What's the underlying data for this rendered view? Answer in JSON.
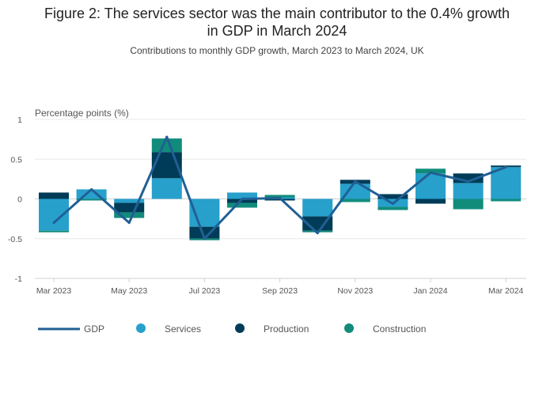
{
  "chart_data": {
    "type": "bar",
    "title": "Figure 2: The services sector was the main contributor to the 0.4% growth in GDP in March 2024",
    "title_lines": [
      "Figure 2: The services sector was the main contributor to the 0.4% growth",
      "in GDP in March 2024"
    ],
    "subtitle": "Contributions to monthly GDP growth, March 2023 to March 2024, UK",
    "ylabel": "Percentage points (%)",
    "ylim": [
      -1,
      1
    ],
    "yticks": [
      1,
      0.5,
      0,
      -0.5,
      -1
    ],
    "ytick_labels": [
      "1",
      "0.5",
      "0",
      "-0.5",
      "-1"
    ],
    "grid": true,
    "categories": [
      "Mar 2023",
      "Apr 2023",
      "May 2023",
      "Jun 2023",
      "Jul 2023",
      "Aug 2023",
      "Sep 2023",
      "Oct 2023",
      "Nov 2023",
      "Dec 2023",
      "Jan 2024",
      "Feb 2024",
      "Mar 2024"
    ],
    "xtick_labels": [
      "Mar 2023",
      "",
      "May 2023",
      "",
      "Jul 2023",
      "",
      "Sep 2023",
      "",
      "Nov 2023",
      "",
      "Jan 2024",
      "",
      "Mar 2024"
    ],
    "series": [
      {
        "name": "Services",
        "kind": "bar",
        "color": "#27a0cc",
        "values": [
          -0.4,
          0.12,
          -0.05,
          0.26,
          -0.35,
          0.08,
          0.02,
          -0.22,
          0.19,
          -0.1,
          0.32,
          0.2,
          0.4
        ]
      },
      {
        "name": "Production",
        "kind": "bar",
        "color": "#003c57",
        "values": [
          0.08,
          0.0,
          -0.12,
          0.33,
          -0.15,
          -0.05,
          -0.02,
          -0.18,
          0.05,
          0.06,
          -0.06,
          0.12,
          0.02
        ]
      },
      {
        "name": "Construction",
        "kind": "bar",
        "color": "#118c7b",
        "values": [
          -0.02,
          -0.02,
          -0.07,
          0.17,
          -0.02,
          -0.06,
          0.03,
          -0.02,
          -0.04,
          -0.04,
          0.06,
          -0.13,
          -0.03
        ]
      },
      {
        "name": "GDP",
        "kind": "line",
        "color": "#206095",
        "values": [
          -0.3,
          0.12,
          -0.3,
          0.78,
          -0.5,
          0.0,
          0.01,
          -0.43,
          0.22,
          -0.06,
          0.33,
          0.22,
          0.4
        ]
      }
    ],
    "legend_order": [
      "GDP",
      "Services",
      "Production",
      "Construction"
    ],
    "legend_position": "bottom"
  }
}
